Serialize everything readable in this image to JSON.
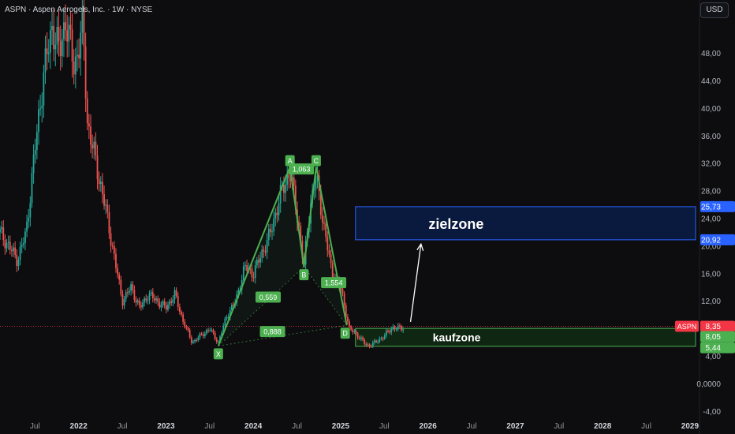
{
  "header": {
    "title": "ASPN · Aspen Aerogels, Inc. · 1W · NYSE",
    "currency_button": "USD"
  },
  "colors": {
    "background": "#0d0d0f",
    "up": "#26a69a",
    "down": "#ef5350",
    "pattern": "#4caf50",
    "target_fill": "#0a1a3e",
    "target_border": "#2962ff",
    "buy_fill": "#0f2612",
    "buy_border": "#4caf50",
    "price_badge": "#f23645"
  },
  "chart_data": {
    "type": "candlestick",
    "y_axis": {
      "ticks": [
        "48,00",
        "44,00",
        "40,00",
        "36,00",
        "32,00",
        "28,00",
        "24,00",
        "20,00",
        "16,00",
        "12,00",
        "4,00",
        "0,0000",
        "-4,00"
      ],
      "tick_values": [
        48,
        44,
        40,
        36,
        32,
        28,
        24,
        20,
        16,
        12,
        4,
        0,
        -4
      ],
      "range": [
        -5,
        53
      ]
    },
    "x_axis": {
      "labels": [
        "Jul",
        "2022",
        "Jul",
        "2023",
        "Jul",
        "2024",
        "Jul",
        "2025",
        "Jul",
        "2026",
        "Jul",
        "2027",
        "Jul",
        "2028",
        "Jul",
        "2029"
      ],
      "label_dates": [
        2021.5,
        2022.0,
        2022.5,
        2023.0,
        2023.5,
        2024.0,
        2024.5,
        2025.0,
        2025.5,
        2026.0,
        2026.5,
        2027.0,
        2027.5,
        2028.0,
        2028.5,
        2029.0
      ],
      "range": [
        2021.1,
        2029.1
      ]
    },
    "price_series_keypoints": [
      {
        "x": 2021.1,
        "y": 22
      },
      {
        "x": 2021.2,
        "y": 20
      },
      {
        "x": 2021.3,
        "y": 18
      },
      {
        "x": 2021.4,
        "y": 22
      },
      {
        "x": 2021.5,
        "y": 34
      },
      {
        "x": 2021.6,
        "y": 45
      },
      {
        "x": 2021.7,
        "y": 52
      },
      {
        "x": 2021.78,
        "y": 48
      },
      {
        "x": 2021.85,
        "y": 53
      },
      {
        "x": 2021.95,
        "y": 46
      },
      {
        "x": 2022.05,
        "y": 52
      },
      {
        "x": 2022.1,
        "y": 38
      },
      {
        "x": 2022.2,
        "y": 32
      },
      {
        "x": 2022.3,
        "y": 26
      },
      {
        "x": 2022.4,
        "y": 19
      },
      {
        "x": 2022.5,
        "y": 12
      },
      {
        "x": 2022.6,
        "y": 14
      },
      {
        "x": 2022.7,
        "y": 11
      },
      {
        "x": 2022.8,
        "y": 13
      },
      {
        "x": 2022.9,
        "y": 12
      },
      {
        "x": 2023.0,
        "y": 11
      },
      {
        "x": 2023.1,
        "y": 13
      },
      {
        "x": 2023.2,
        "y": 9
      },
      {
        "x": 2023.3,
        "y": 6
      },
      {
        "x": 2023.4,
        "y": 7
      },
      {
        "x": 2023.5,
        "y": 8
      },
      {
        "x": 2023.6,
        "y": 6
      },
      {
        "x": 2023.7,
        "y": 10
      },
      {
        "x": 2023.8,
        "y": 12
      },
      {
        "x": 2023.9,
        "y": 17
      },
      {
        "x": 2024.0,
        "y": 16
      },
      {
        "x": 2024.1,
        "y": 19
      },
      {
        "x": 2024.2,
        "y": 22
      },
      {
        "x": 2024.3,
        "y": 27
      },
      {
        "x": 2024.42,
        "y": 31
      },
      {
        "x": 2024.52,
        "y": 23
      },
      {
        "x": 2024.58,
        "y": 17
      },
      {
        "x": 2024.65,
        "y": 26
      },
      {
        "x": 2024.72,
        "y": 30
      },
      {
        "x": 2024.82,
        "y": 22
      },
      {
        "x": 2024.9,
        "y": 16
      },
      {
        "x": 2025.0,
        "y": 14
      },
      {
        "x": 2025.1,
        "y": 8
      },
      {
        "x": 2025.2,
        "y": 7
      },
      {
        "x": 2025.3,
        "y": 5.5
      },
      {
        "x": 2025.4,
        "y": 6
      },
      {
        "x": 2025.5,
        "y": 7
      },
      {
        "x": 2025.6,
        "y": 8.2
      },
      {
        "x": 2025.7,
        "y": 8.0
      },
      {
        "x": 2025.73,
        "y": 8.35
      }
    ],
    "pattern": {
      "points": [
        {
          "label": "X",
          "x": 2023.6,
          "y": 5.5
        },
        {
          "label": "A",
          "x": 2024.42,
          "y": 31.5
        },
        {
          "label": "B",
          "x": 2024.58,
          "y": 17.0
        },
        {
          "label": "C",
          "x": 2024.72,
          "y": 31.5
        },
        {
          "label": "D",
          "x": 2025.07,
          "y": 8.5
        }
      ],
      "ratios": [
        {
          "text": "0,559",
          "x": 2024.17,
          "y": 12.6
        },
        {
          "text": "1,063",
          "x": 2024.55,
          "y": 31.2
        },
        {
          "text": "1,554",
          "x": 2024.92,
          "y": 14.7
        },
        {
          "text": "0,888",
          "x": 2024.22,
          "y": 7.6
        }
      ]
    },
    "zones": {
      "target": {
        "label": "zielzone",
        "top": 25.73,
        "bottom": 20.92,
        "x_start": 2025.17,
        "x_end": 2029.1
      },
      "buy": {
        "label": "kaufzone",
        "top": 8.05,
        "bottom": 5.44,
        "x_start": 2025.17,
        "x_end": 2029.1
      }
    },
    "price_labels": {
      "target_top": "25,73",
      "target_bottom": "20,92",
      "current_symbol": "ASPN",
      "current_price": "8,35",
      "buy_top": "8,05",
      "buy_bottom": "5,44"
    },
    "current_price_value": 8.35,
    "arrow": {
      "from": {
        "x": 2025.8,
        "y": 9.0
      },
      "to": {
        "x": 2025.92,
        "y": 20.3
      }
    }
  }
}
